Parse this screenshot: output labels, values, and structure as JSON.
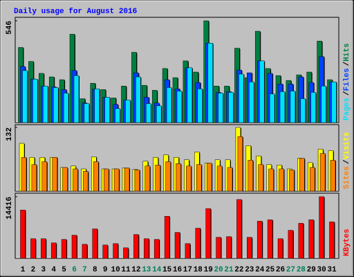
{
  "title": "Daily usage for August 2016",
  "legend_separator": "/",
  "chart_data": [
    {
      "type": "bar",
      "ylim": [
        0,
        546
      ],
      "yticks": [
        546
      ],
      "series": [
        {
          "name": "Hits",
          "color": "#008040",
          "values": [
            403,
            328,
            264,
            245,
            230,
            474,
            128,
            211,
            177,
            132,
            196,
            377,
            200,
            173,
            290,
            241,
            331,
            271,
            546,
            196,
            196,
            399,
            241,
            490,
            290,
            252,
            226,
            256,
            271,
            437,
            230
          ]
        },
        {
          "name": "Files",
          "color": "#0040ff",
          "values": [
            301,
            234,
            196,
            192,
            177,
            279,
            105,
            181,
            136,
            98,
            120,
            267,
            136,
            105,
            230,
            181,
            294,
            215,
            426,
            162,
            166,
            282,
            267,
            331,
            264,
            207,
            207,
            245,
            215,
            354,
            218
          ]
        },
        {
          "name": "Pages",
          "color": "#00e0ff",
          "values": [
            279,
            233,
            196,
            188,
            158,
            252,
            102,
            181,
            136,
            75,
            121,
            245,
            102,
            90,
            188,
            169,
            294,
            181,
            426,
            158,
            162,
            260,
            218,
            331,
            154,
            166,
            169,
            128,
            162,
            196,
            218
          ]
        }
      ]
    },
    {
      "type": "bar",
      "ylim": [
        0,
        132
      ],
      "yticks": [
        132
      ],
      "series": [
        {
          "name": "Visits",
          "color": "#ffff00",
          "values": [
            99,
            70,
            70,
            70,
            49,
            52,
            46,
            71,
            46,
            46,
            48,
            45,
            62,
            70,
            75,
            70,
            65,
            81,
            58,
            65,
            65,
            132,
            94,
            73,
            55,
            54,
            46,
            68,
            59,
            87,
            84
          ]
        },
        {
          "name": "Sites",
          "color": "#ff8000",
          "values": [
            70,
            55,
            61,
            70,
            49,
            46,
            41,
            61,
            46,
            46,
            48,
            44,
            52,
            54,
            61,
            57,
            52,
            55,
            58,
            52,
            49,
            113,
            64,
            55,
            46,
            46,
            44,
            68,
            49,
            78,
            64
          ]
        }
      ]
    },
    {
      "type": "bar",
      "ylim": [
        0,
        14416
      ],
      "yticks": [
        14416
      ],
      "series": [
        {
          "name": "KBytes",
          "color": "#ff0000",
          "values": [
            11302,
            4587,
            4587,
            3604,
            4423,
            5406,
            3276,
            6880,
            3112,
            3440,
            2457,
            5570,
            4587,
            4423,
            9828,
            6061,
            3440,
            7043,
            11630,
            4914,
            5078,
            13760,
            4914,
            8681,
            9009,
            4587,
            6552,
            8190,
            9009,
            14416,
            8518
          ]
        }
      ],
      "categories": [
        "1",
        "2",
        "3",
        "4",
        "5",
        "6",
        "7",
        "8",
        "9",
        "10",
        "11",
        "12",
        "13",
        "14",
        "15",
        "16",
        "17",
        "18",
        "19",
        "20",
        "21",
        "22",
        "23",
        "24",
        "25",
        "26",
        "27",
        "28",
        "29",
        "30",
        "31"
      ],
      "highlight_categories": [
        "6",
        "7",
        "13",
        "14",
        "20",
        "21",
        "27",
        "28"
      ],
      "category_color": "#000000",
      "highlight_color": "#00805c"
    }
  ]
}
